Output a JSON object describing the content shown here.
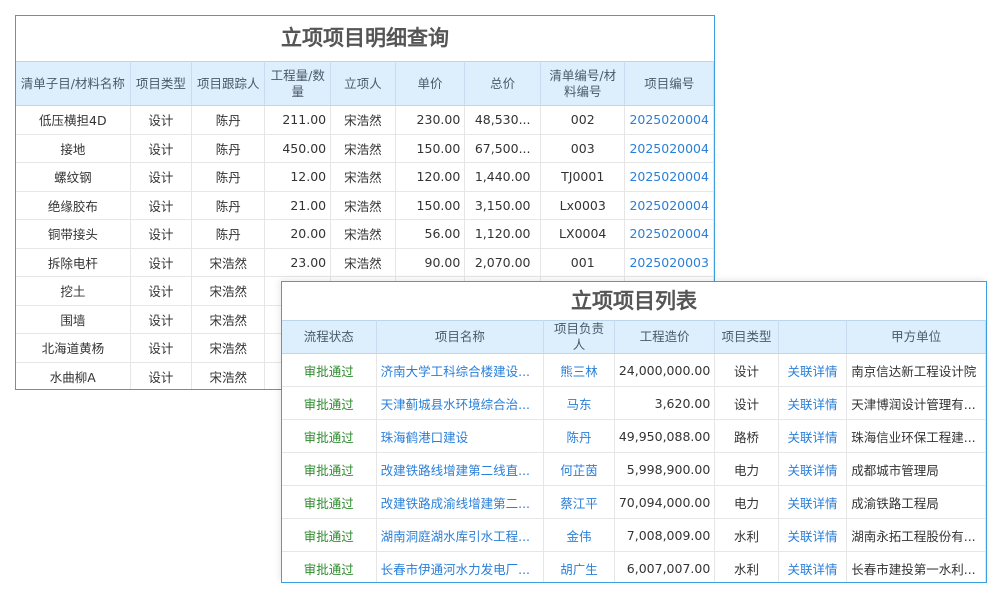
{
  "detail": {
    "title": "立项项目明细查询",
    "headers": [
      "清单子目/材料名称",
      "项目类型",
      "项目跟踪人",
      "工程量/数量",
      "立项人",
      "单价",
      "总价",
      "清单编号/材料编号",
      "项目编号"
    ],
    "rows": [
      [
        "低压横担4D",
        "设计",
        "陈丹",
        "211.00",
        "宋浩然",
        "230.00",
        "48,530...",
        "002",
        "2025020004"
      ],
      [
        "接地",
        "设计",
        "陈丹",
        "450.00",
        "宋浩然",
        "150.00",
        "67,500...",
        "003",
        "2025020004"
      ],
      [
        "螺纹钢",
        "设计",
        "陈丹",
        "12.00",
        "宋浩然",
        "120.00",
        "1,440.00",
        "TJ0001",
        "2025020004"
      ],
      [
        "绝缘胶布",
        "设计",
        "陈丹",
        "21.00",
        "宋浩然",
        "150.00",
        "3,150.00",
        "Lx0003",
        "2025020004"
      ],
      [
        "铜带接头",
        "设计",
        "陈丹",
        "20.00",
        "宋浩然",
        "56.00",
        "1,120.00",
        "LX0004",
        "2025020004"
      ],
      [
        "拆除电杆",
        "设计",
        "宋浩然",
        "23.00",
        "宋浩然",
        "90.00",
        "2,070.00",
        "001",
        "2025020003"
      ],
      [
        "挖土",
        "设计",
        "宋浩然",
        "",
        "",
        "",
        "",
        "",
        ""
      ],
      [
        "围墙",
        "设计",
        "宋浩然",
        "",
        "",
        "",
        "",
        "",
        ""
      ],
      [
        "北海道黄杨",
        "设计",
        "宋浩然",
        "",
        "",
        "",
        "",
        "",
        ""
      ],
      [
        "水曲柳A",
        "设计",
        "宋浩然",
        "",
        "",
        "",
        "",
        "",
        ""
      ]
    ]
  },
  "list": {
    "title": "立项项目列表",
    "headers": [
      "流程状态",
      "项目名称",
      "项目负责人",
      "工程造价",
      "项目类型",
      "",
      "甲方单位"
    ],
    "rows": [
      [
        "审批通过",
        "济南大学工科综合楼建设...",
        "熊三林",
        "24,000,000.00",
        "设计",
        "关联详情",
        "南京信达新工程设计院"
      ],
      [
        "审批通过",
        "天津蓟城县水环境综合治...",
        "马东",
        "3,620.00",
        "设计",
        "关联详情",
        "天津博润设计管理有..."
      ],
      [
        "审批通过",
        "珠海鹤港口建设",
        "陈丹",
        "49,950,088.00",
        "路桥",
        "关联详情",
        "珠海信业环保工程建..."
      ],
      [
        "审批通过",
        "改建铁路线增建第二线直...",
        "何芷茵",
        "5,998,900.00",
        "电力",
        "关联详情",
        "成都城市管理局"
      ],
      [
        "审批通过",
        "改建铁路成渝线增建第二...",
        "蔡江平",
        "70,094,000.00",
        "电力",
        "关联详情",
        "成渝铁路工程局"
      ],
      [
        "审批通过",
        "湖南洞庭湖水库引水工程...",
        "金伟",
        "7,008,009.00",
        "水利",
        "关联详情",
        "湖南永拓工程股份有..."
      ],
      [
        "审批通过",
        "长春市伊通河水力发电厂...",
        "胡广生",
        "6,007,007.00",
        "水利",
        "关联详情",
        "长春市建投第一水利..."
      ]
    ]
  }
}
